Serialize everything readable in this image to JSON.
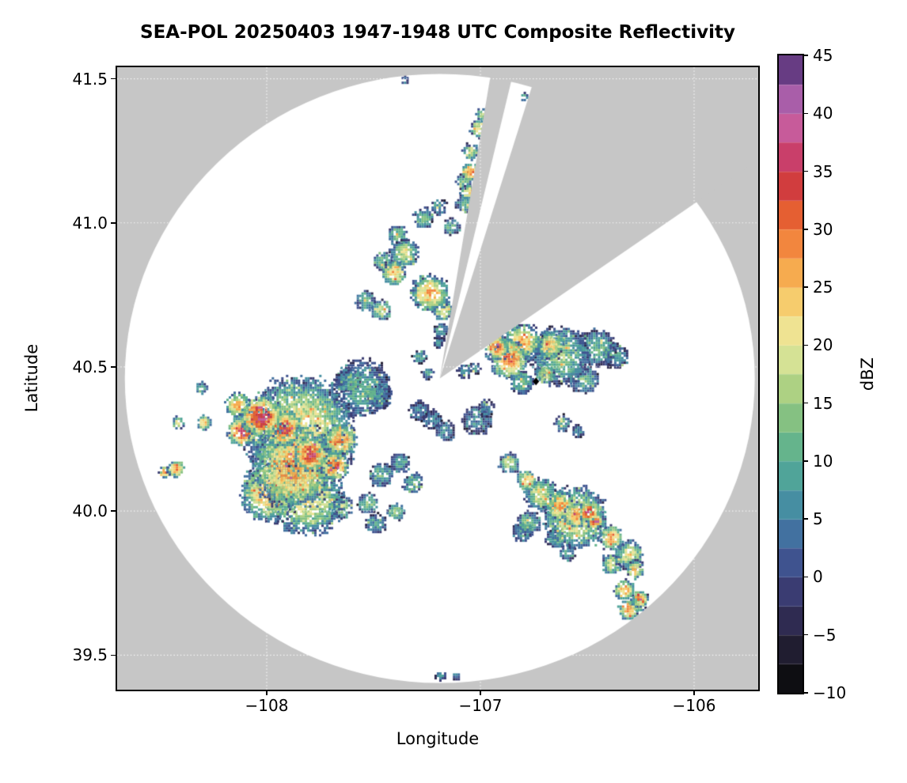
{
  "figure": {
    "title": "SEA-POL 20250403 1947-1948 UTC Composite Reflectivity",
    "xlabel": "Longitude",
    "ylabel": "Latitude",
    "colorbar_label": "dBZ"
  },
  "chart_data": {
    "type": "heatmap",
    "subtype": "radar-composite-reflectivity-ppi",
    "title": "SEA-POL 20250403 1947-1948 UTC Composite Reflectivity",
    "xlabel": "Longitude",
    "ylabel": "Latitude",
    "xlim": [
      -108.7,
      -105.7
    ],
    "ylim": [
      39.38,
      41.54
    ],
    "x_ticks": {
      "values": [
        -108,
        -107,
        -106
      ],
      "labels": [
        "−108",
        "−107",
        "−106"
      ]
    },
    "y_ticks": {
      "values": [
        39.5,
        40.0,
        40.5,
        41.0,
        41.5
      ],
      "labels": [
        "39.5",
        "40.0",
        "40.5",
        "41.0",
        "41.5"
      ]
    },
    "grid": "white-dotted",
    "background_outside_range": "#c6c6c6",
    "background_inside_range": "#ffffff",
    "colorbar": {
      "label": "dBZ",
      "min": -10,
      "max": 45,
      "step": 2.5,
      "tick_values": [
        -10,
        -5,
        0,
        5,
        10,
        15,
        20,
        25,
        30,
        35,
        40,
        45
      ],
      "tick_labels": [
        "−10",
        "−5",
        "0",
        "5",
        "10",
        "15",
        "20",
        "25",
        "30",
        "35",
        "40",
        "45"
      ],
      "stops": [
        [
          -10,
          "#050505"
        ],
        [
          -7.5,
          "#17161f"
        ],
        [
          -5,
          "#282441"
        ],
        [
          -2.5,
          "#363261"
        ],
        [
          0,
          "#3e4583"
        ],
        [
          2.5,
          "#40619b"
        ],
        [
          5,
          "#4380a4"
        ],
        [
          7.5,
          "#499b9f"
        ],
        [
          10,
          "#57ad92"
        ],
        [
          12.5,
          "#72ba85"
        ],
        [
          15,
          "#97c87e"
        ],
        [
          17.5,
          "#c2da88"
        ],
        [
          20,
          "#e8e9a2"
        ],
        [
          22.5,
          "#f5dc81"
        ],
        [
          25,
          "#f7bb59"
        ],
        [
          27.5,
          "#f59a45"
        ],
        [
          30,
          "#ee7236"
        ],
        [
          32.5,
          "#dc4b2e"
        ],
        [
          35,
          "#c62f4d"
        ],
        [
          37.5,
          "#cb4f86"
        ],
        [
          40,
          "#c367ad"
        ],
        [
          42.5,
          "#8e55a5"
        ],
        [
          45,
          "#3f2260"
        ]
      ]
    },
    "radar": {
      "center_lon": -107.19,
      "center_lat": 40.46,
      "range_lon_deg": 1.474,
      "range_lat_deg": 1.057,
      "blocked_sectors_deg": [
        [
          9.5,
          14.5
        ],
        [
          17.5,
          57
        ]
      ],
      "site_marker": {
        "lon": -106.74,
        "lat": 40.45,
        "color": "#000000",
        "shape": "diamond"
      }
    },
    "cells_format": "[lon, lat, radius_deg, peak_dbz]",
    "cells": [
      [
        -108.03,
        40.33,
        0.1,
        36
      ],
      [
        -107.93,
        40.29,
        0.09,
        34
      ],
      [
        -108.12,
        40.28,
        0.07,
        33
      ],
      [
        -107.8,
        40.2,
        0.08,
        36
      ],
      [
        -107.69,
        40.16,
        0.07,
        30
      ],
      [
        -107.88,
        40.16,
        0.2,
        27
      ],
      [
        -107.99,
        40.07,
        0.14,
        26
      ],
      [
        -107.66,
        40.25,
        0.08,
        28
      ],
      [
        -107.85,
        40.28,
        0.26,
        22
      ],
      [
        -107.82,
        40.05,
        0.18,
        22
      ],
      [
        -108.14,
        40.37,
        0.06,
        27
      ],
      [
        -108.3,
        40.31,
        0.035,
        25
      ],
      [
        -108.42,
        40.31,
        0.03,
        20
      ],
      [
        -108.43,
        40.15,
        0.04,
        29
      ],
      [
        -108.48,
        40.14,
        0.03,
        27
      ],
      [
        -108.31,
        40.43,
        0.03,
        14
      ],
      [
        -107.66,
        40.02,
        0.06,
        18
      ],
      [
        -107.53,
        40.03,
        0.05,
        14
      ],
      [
        -107.49,
        39.96,
        0.05,
        10
      ],
      [
        -107.4,
        40.0,
        0.04,
        16
      ],
      [
        -107.47,
        40.13,
        0.06,
        12
      ],
      [
        -107.38,
        40.17,
        0.05,
        10
      ],
      [
        -107.32,
        40.1,
        0.05,
        12
      ],
      [
        -107.56,
        40.43,
        0.14,
        11
      ],
      [
        -107.62,
        40.46,
        0.06,
        8
      ],
      [
        -107.48,
        40.4,
        0.06,
        9
      ],
      [
        -107.29,
        40.35,
        0.05,
        5
      ],
      [
        -107.23,
        40.32,
        0.05,
        6
      ],
      [
        -107.17,
        40.28,
        0.05,
        7
      ],
      [
        -107.02,
        40.32,
        0.07,
        6
      ],
      [
        -106.98,
        40.36,
        0.04,
        8
      ],
      [
        -107.08,
        40.49,
        0.035,
        8
      ],
      [
        -107.03,
        40.5,
        0.03,
        11
      ],
      [
        -107.29,
        40.54,
        0.035,
        10
      ],
      [
        -107.25,
        40.48,
        0.03,
        8
      ],
      [
        -107.19,
        40.63,
        0.04,
        8
      ],
      [
        -107.2,
        40.59,
        0.03,
        5
      ],
      [
        -106.87,
        40.53,
        0.09,
        30
      ],
      [
        -106.93,
        40.57,
        0.06,
        31
      ],
      [
        -106.81,
        40.59,
        0.09,
        27
      ],
      [
        -106.68,
        40.58,
        0.07,
        24
      ],
      [
        -106.7,
        40.48,
        0.05,
        20
      ],
      [
        -106.63,
        40.54,
        0.14,
        14
      ],
      [
        -106.46,
        40.57,
        0.09,
        12
      ],
      [
        -106.37,
        40.54,
        0.06,
        10
      ],
      [
        -106.52,
        40.46,
        0.07,
        12
      ],
      [
        -106.81,
        40.45,
        0.06,
        13
      ],
      [
        -106.93,
        40.6,
        0.04,
        26
      ],
      [
        -106.62,
        40.31,
        0.04,
        10
      ],
      [
        -106.55,
        40.28,
        0.03,
        8
      ],
      [
        -107.47,
        40.7,
        0.05,
        18
      ],
      [
        -107.54,
        40.73,
        0.05,
        12
      ],
      [
        -107.41,
        40.83,
        0.06,
        24
      ],
      [
        -107.46,
        40.87,
        0.05,
        14
      ],
      [
        -107.36,
        40.9,
        0.07,
        18
      ],
      [
        -107.39,
        40.96,
        0.05,
        13
      ],
      [
        -107.24,
        40.76,
        0.09,
        26
      ],
      [
        -107.18,
        40.7,
        0.05,
        20
      ],
      [
        -107.27,
        41.02,
        0.05,
        12
      ],
      [
        -107.2,
        41.06,
        0.04,
        10
      ],
      [
        -107.14,
        40.99,
        0.04,
        11
      ],
      [
        -107.07,
        41.07,
        0.05,
        12
      ],
      [
        -107.05,
        41.18,
        0.045,
        30
      ],
      [
        -107.06,
        41.11,
        0.04,
        24
      ],
      [
        -107.05,
        41.25,
        0.04,
        18
      ],
      [
        -107.01,
        41.33,
        0.045,
        22
      ],
      [
        -106.99,
        41.38,
        0.035,
        18
      ],
      [
        -107.08,
        41.15,
        0.04,
        13
      ],
      [
        -107.36,
        41.5,
        0.02,
        9
      ],
      [
        -106.8,
        41.44,
        0.02,
        12
      ],
      [
        -106.63,
        40.02,
        0.07,
        27
      ],
      [
        -106.56,
        39.99,
        0.06,
        28
      ],
      [
        -106.5,
        40.0,
        0.045,
        38
      ],
      [
        -106.47,
        39.97,
        0.04,
        35
      ],
      [
        -106.56,
        39.98,
        0.15,
        22
      ],
      [
        -106.72,
        40.06,
        0.08,
        20
      ],
      [
        -106.79,
        40.11,
        0.05,
        25
      ],
      [
        -106.87,
        40.17,
        0.05,
        18
      ],
      [
        -106.78,
        39.96,
        0.06,
        13
      ],
      [
        -106.81,
        39.93,
        0.05,
        9
      ],
      [
        -106.39,
        39.91,
        0.06,
        26
      ],
      [
        -106.31,
        39.85,
        0.07,
        20
      ],
      [
        -106.39,
        39.82,
        0.05,
        19
      ],
      [
        -106.28,
        39.8,
        0.045,
        25
      ],
      [
        -106.33,
        39.73,
        0.05,
        27
      ],
      [
        -106.26,
        39.7,
        0.04,
        28
      ],
      [
        -106.31,
        39.66,
        0.05,
        26
      ],
      [
        -106.27,
        39.68,
        0.04,
        18
      ],
      [
        -106.65,
        39.91,
        0.05,
        12
      ],
      [
        -106.6,
        39.86,
        0.04,
        9
      ],
      [
        -107.19,
        39.43,
        0.025,
        8
      ],
      [
        -107.12,
        39.43,
        0.02,
        6
      ]
    ]
  }
}
